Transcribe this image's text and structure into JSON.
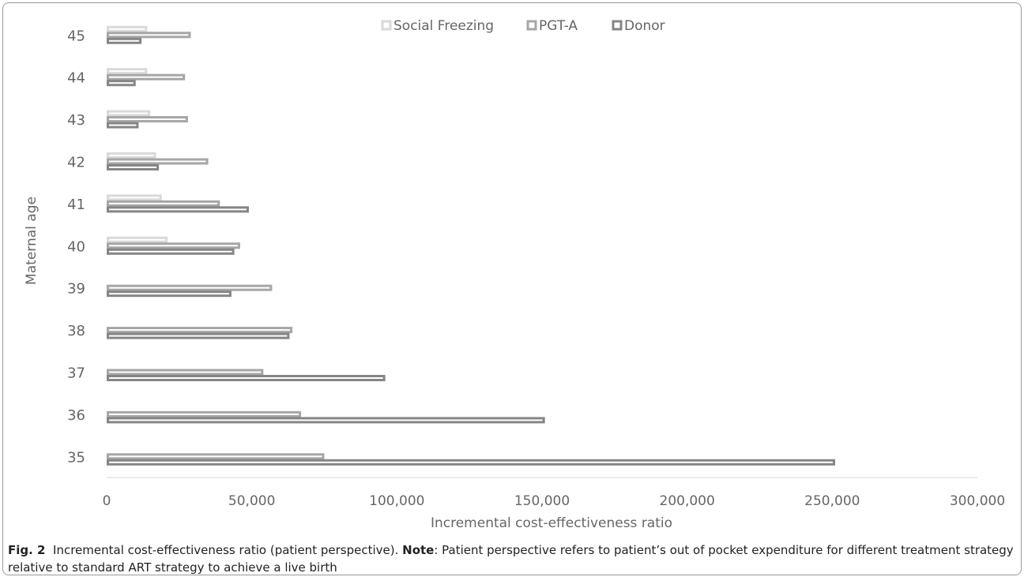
{
  "chart_data": {
    "type": "bar",
    "orientation": "horizontal",
    "categories": [
      "35",
      "36",
      "37",
      "38",
      "39",
      "40",
      "41",
      "42",
      "43",
      "44",
      "45"
    ],
    "series": [
      {
        "name": "Social Freezing",
        "color": "#d9d9d9",
        "values": [
          null,
          null,
          null,
          null,
          null,
          21000,
          19000,
          17000,
          15000,
          14000,
          14000
        ]
      },
      {
        "name": "PGT-A",
        "color": "#a6a6a6",
        "values": [
          75000,
          67000,
          54000,
          64000,
          57000,
          46000,
          39000,
          35000,
          28000,
          27000,
          29000
        ]
      },
      {
        "name": "Donor",
        "color": "#858585",
        "values": [
          251000,
          151000,
          96000,
          63000,
          43000,
          44000,
          49000,
          18000,
          11000,
          10000,
          12000
        ]
      }
    ],
    "xlim": [
      0,
      300000
    ],
    "xticks": [
      0,
      {
        "value": 50000,
        "label": "50,000"
      },
      {
        "value": 100000,
        "label": "100,000"
      },
      {
        "value": 150000,
        "label": "150,000"
      },
      {
        "value": 200000,
        "label": "200,000"
      },
      {
        "value": 250000,
        "label": "250,000"
      },
      {
        "value": 300000,
        "label": "300,000"
      }
    ],
    "x_label": "Incremental cost-effectiveness ratio",
    "y_label": "Maternal age",
    "legend": "top",
    "grid": false,
    "caption": {
      "label": "Fig. 2",
      "text": "Incremental cost-effectiveness ratio (patient perspective).",
      "note_label": "Note",
      "note_text": ": Patient perspective refers to patient’s out of pocket expenditure for different treatment strategy relative to standard ART strategy to achieve a live birth"
    }
  }
}
